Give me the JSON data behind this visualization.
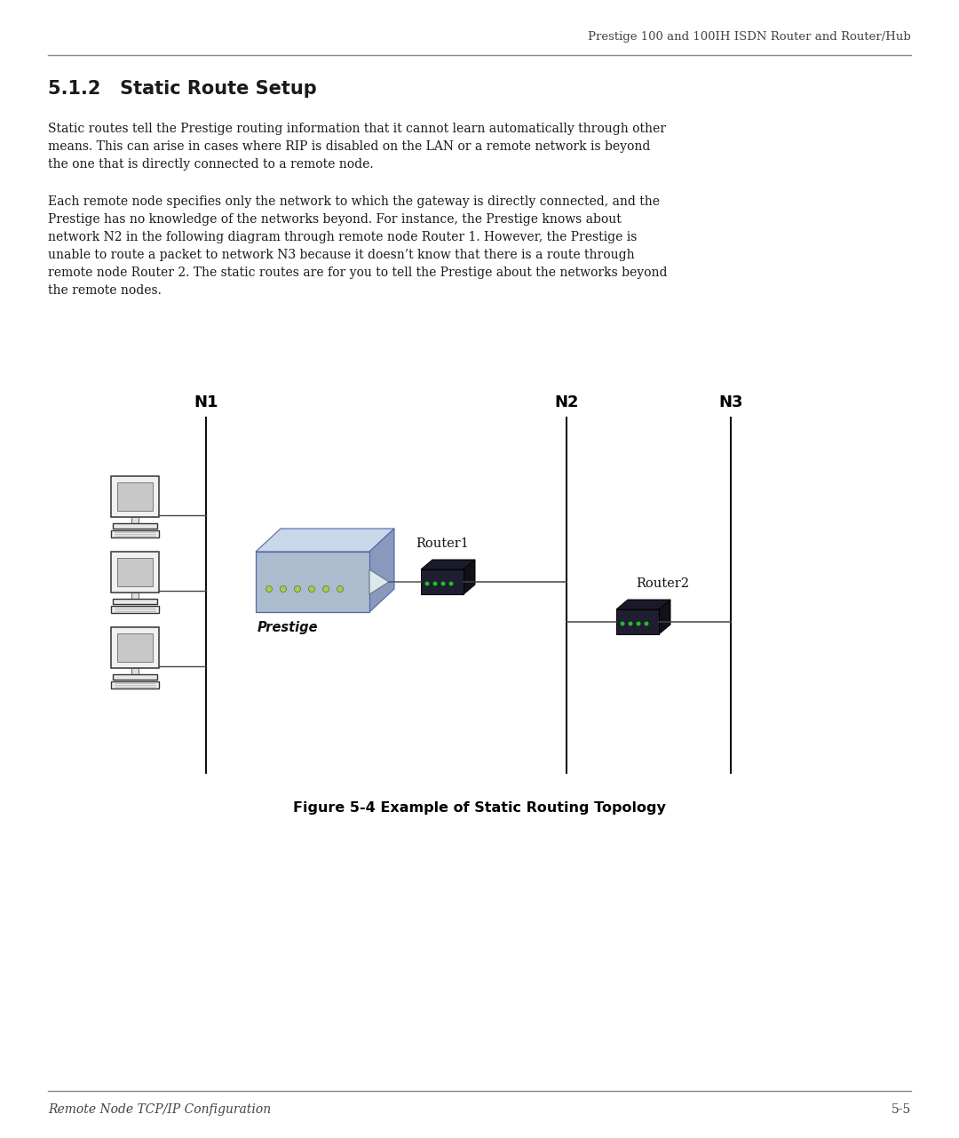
{
  "header_text": "Prestige 100 and 100IH ISDN Router and Router/Hub",
  "section_title": "5.1.2   Static Route Setup",
  "body_text_1": "Static routes tell the Prestige routing information that it cannot learn automatically through other\nmeans. This can arise in cases where RIP is disabled on the LAN or a remote network is beyond\nthe one that is directly connected to a remote node.",
  "body_text_2": "Each remote node specifies only the network to which the gateway is directly connected, and the\nPrestige has no knowledge of the networks beyond. For instance, the Prestige knows about\nnetwork N2 in the following diagram through remote node Router 1. However, the Prestige is\nunable to route a packet to network N3 because it doesn’t know that there is a route through\nremote node Router 2. The static routes are for you to tell the Prestige about the networks beyond\nthe remote nodes.",
  "figure_caption": "Figure 5-4 Example of Static Routing Topology",
  "footer_left": "Remote Node TCP/IP Configuration",
  "footer_right": "5-5",
  "n1_label": "N1",
  "n2_label": "N2",
  "n3_label": "N3",
  "router1_label": "Router1",
  "router2_label": "Router2",
  "prestige_label": "Prestige",
  "bg_color": "#ffffff",
  "text_color": "#1a1a1a",
  "header_color": "#444444",
  "line_color": "#000000"
}
